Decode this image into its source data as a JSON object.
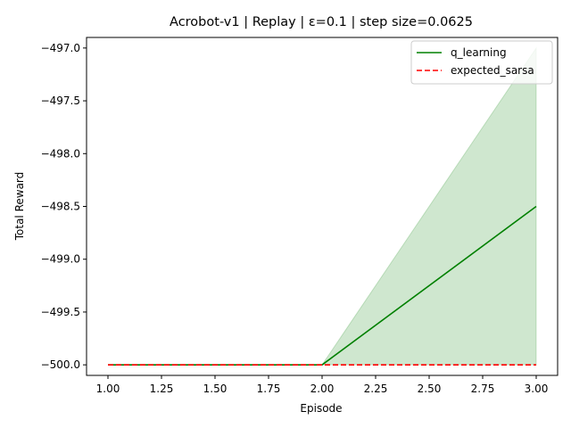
{
  "chart_data": {
    "type": "line",
    "title": "Acrobot-v1 | Replay | ε=0.1 | step size=0.0625",
    "xlabel": "Episode",
    "ylabel": "Total Reward",
    "xlim": [
      0.9,
      3.1
    ],
    "ylim": [
      -500.1,
      -496.9
    ],
    "xticks": [
      1.0,
      1.25,
      1.5,
      1.75,
      2.0,
      2.25,
      2.5,
      2.75,
      3.0
    ],
    "xtick_labels": [
      "1.00",
      "1.25",
      "1.50",
      "1.75",
      "2.00",
      "2.25",
      "2.50",
      "2.75",
      "3.00"
    ],
    "yticks": [
      -500.0,
      -499.5,
      -499.0,
      -498.5,
      -498.0,
      -497.5,
      -497.0
    ],
    "ytick_labels": [
      "−500.0",
      "−499.5",
      "−499.0",
      "−498.5",
      "−498.0",
      "−497.5",
      "−497.0"
    ],
    "grid": false,
    "legend_position": "top-right",
    "x": [
      1,
      2,
      3
    ],
    "series": [
      {
        "name": "q_learning",
        "values": [
          -500,
          -500,
          -498.5
        ],
        "band_lower": [
          -500,
          -500,
          -500
        ],
        "band_upper": [
          -500,
          -500,
          -497
        ],
        "color": "#008000",
        "band_color": "#008000",
        "dash": "solid"
      },
      {
        "name": "expected_sarsa",
        "values": [
          -500,
          -500,
          -500
        ],
        "color": "#ff0000",
        "dash": "dashed"
      }
    ]
  }
}
